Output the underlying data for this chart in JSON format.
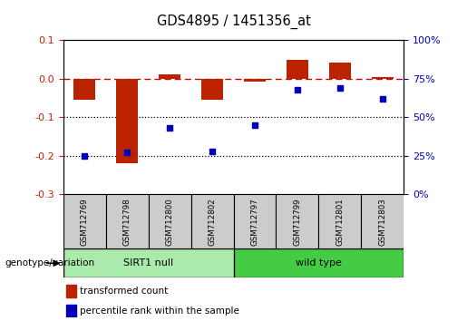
{
  "title": "GDS4895 / 1451356_at",
  "samples": [
    "GSM712769",
    "GSM712798",
    "GSM712800",
    "GSM712802",
    "GSM712797",
    "GSM712799",
    "GSM712801",
    "GSM712803"
  ],
  "transformed_count": [
    -0.055,
    -0.22,
    0.01,
    -0.055,
    -0.008,
    0.048,
    0.042,
    0.005
  ],
  "percentile_rank": [
    25,
    27,
    43,
    28,
    45,
    68,
    69,
    62
  ],
  "groups": [
    {
      "label": "SIRT1 null",
      "start": 0,
      "end": 4,
      "color": "#AAEAAA"
    },
    {
      "label": "wild type",
      "start": 4,
      "end": 8,
      "color": "#44CC44"
    }
  ],
  "ylim_left": [
    -0.3,
    0.1
  ],
  "ylim_right": [
    0,
    100
  ],
  "yticks_left": [
    -0.3,
    -0.2,
    -0.1,
    0.0,
    0.1
  ],
  "yticks_right": [
    0,
    25,
    50,
    75,
    100
  ],
  "bar_color": "#BB2200",
  "scatter_color": "#0000BB",
  "dashed_line_color": "#CC0000",
  "dotted_line_values": [
    -0.1,
    -0.2
  ],
  "group_label": "genotype/variation",
  "legend_items": [
    {
      "color": "#BB2200",
      "label": "transformed count"
    },
    {
      "color": "#0000BB",
      "label": "percentile rank within the sample"
    }
  ]
}
